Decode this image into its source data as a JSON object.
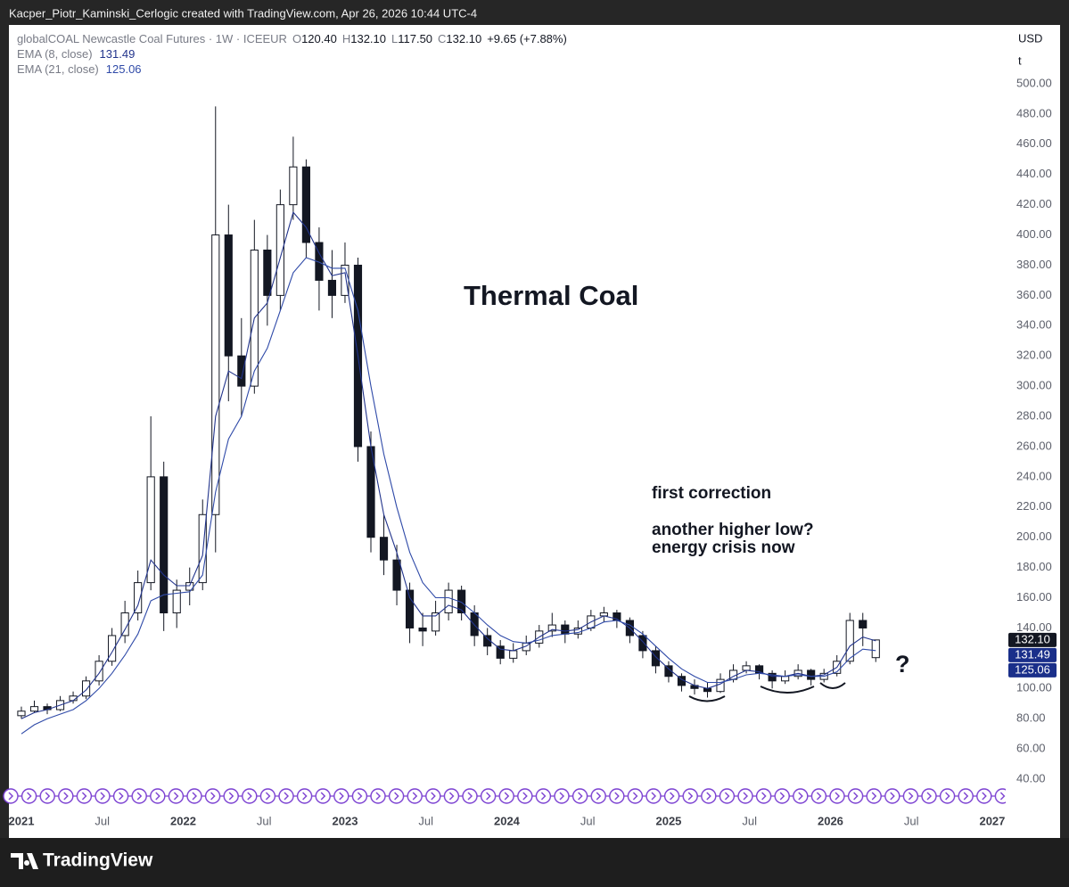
{
  "header": {
    "text": "Kacper_Piotr_Kaminski_Cerlogic created with TradingView.com, Apr 26, 2026 10:44 UTC-4"
  },
  "brand": "TradingView",
  "chart_data": {
    "type": "candlestick",
    "title": "Thermal Coal",
    "annotations": [
      "first correction",
      "another higher low?",
      "energy crisis now",
      "?"
    ],
    "legend": {
      "symbol": "globalCOAL Newcastle Coal Futures · 1W · ICEEUR",
      "fields": [
        {
          "key": "O",
          "value": "120.40"
        },
        {
          "key": "H",
          "value": "132.10"
        },
        {
          "key": "L",
          "value": "117.50"
        },
        {
          "key": "C",
          "value": "132.10"
        }
      ],
      "change": "+9.65 (+7.88%)"
    },
    "currency": "USD",
    "unit": "t",
    "x": [
      2021,
      2021.08,
      2021.16,
      2021.24,
      2021.32,
      2021.4,
      2021.48,
      2021.56,
      2021.64,
      2021.72,
      2021.8,
      2021.88,
      2021.96,
      2022.04,
      2022.12,
      2022.2,
      2022.28,
      2022.36,
      2022.44,
      2022.52,
      2022.6,
      2022.68,
      2022.76,
      2022.84,
      2022.92,
      2023,
      2023.08,
      2023.16,
      2023.24,
      2023.32,
      2023.4,
      2023.48,
      2023.56,
      2023.64,
      2023.72,
      2023.8,
      2023.88,
      2023.96,
      2024.04,
      2024.12,
      2024.2,
      2024.28,
      2024.36,
      2024.44,
      2024.52,
      2024.6,
      2024.68,
      2024.76,
      2024.84,
      2024.92,
      2025,
      2025.08,
      2025.16,
      2025.24,
      2025.32,
      2025.4,
      2025.48,
      2025.56,
      2025.64,
      2025.72,
      2025.8,
      2025.88,
      2025.96,
      2026.04,
      2026.12,
      2026.2,
      2026.28
    ],
    "series": [
      {
        "name": "globalCOAL Newcastle Coal Futures",
        "type": "candlestick",
        "up_color": "#ffffff",
        "down_color": "#131722",
        "border_color": "#131722",
        "values": [
          [
            82,
            88,
            80,
            85
          ],
          [
            85,
            92,
            84,
            88
          ],
          [
            88,
            90,
            83,
            86
          ],
          [
            86,
            95,
            85,
            92
          ],
          [
            92,
            98,
            90,
            95
          ],
          [
            95,
            108,
            93,
            105
          ],
          [
            105,
            122,
            102,
            118
          ],
          [
            118,
            140,
            115,
            135
          ],
          [
            135,
            158,
            130,
            150
          ],
          [
            150,
            178,
            145,
            170
          ],
          [
            170,
            280,
            165,
            240
          ],
          [
            240,
            250,
            138,
            150
          ],
          [
            150,
            172,
            140,
            165
          ],
          [
            165,
            180,
            155,
            170
          ],
          [
            170,
            225,
            165,
            215
          ],
          [
            215,
            485,
            190,
            400
          ],
          [
            400,
            420,
            290,
            320
          ],
          [
            320,
            345,
            280,
            300
          ],
          [
            300,
            410,
            295,
            390
          ],
          [
            390,
            400,
            340,
            360
          ],
          [
            360,
            430,
            350,
            420
          ],
          [
            420,
            465,
            410,
            445
          ],
          [
            445,
            450,
            385,
            395
          ],
          [
            395,
            405,
            350,
            370
          ],
          [
            370,
            390,
            345,
            360
          ],
          [
            360,
            395,
            355,
            380
          ],
          [
            380,
            385,
            250,
            260
          ],
          [
            260,
            270,
            190,
            200
          ],
          [
            200,
            215,
            175,
            185
          ],
          [
            185,
            195,
            155,
            165
          ],
          [
            165,
            170,
            130,
            140
          ],
          [
            140,
            150,
            128,
            138
          ],
          [
            138,
            158,
            135,
            150
          ],
          [
            150,
            170,
            145,
            165
          ],
          [
            165,
            168,
            145,
            150
          ],
          [
            150,
            155,
            128,
            135
          ],
          [
            135,
            140,
            122,
            128
          ],
          [
            128,
            132,
            116,
            120
          ],
          [
            120,
            130,
            117,
            125
          ],
          [
            125,
            135,
            122,
            130
          ],
          [
            130,
            142,
            127,
            138
          ],
          [
            138,
            150,
            134,
            142
          ],
          [
            142,
            145,
            130,
            136
          ],
          [
            136,
            145,
            133,
            140
          ],
          [
            140,
            152,
            138,
            148
          ],
          [
            148,
            154,
            144,
            150
          ],
          [
            150,
            152,
            140,
            145
          ],
          [
            145,
            147,
            130,
            135
          ],
          [
            135,
            138,
            120,
            125
          ],
          [
            125,
            128,
            110,
            115
          ],
          [
            115,
            118,
            104,
            108
          ],
          [
            108,
            110,
            98,
            102
          ],
          [
            102,
            106,
            96,
            100
          ],
          [
            100,
            104,
            94,
            98
          ],
          [
            98,
            110,
            97,
            106
          ],
          [
            106,
            116,
            104,
            112
          ],
          [
            112,
            118,
            110,
            115
          ],
          [
            115,
            116,
            106,
            110
          ],
          [
            110,
            112,
            100,
            105
          ],
          [
            105,
            112,
            103,
            108
          ],
          [
            108,
            116,
            106,
            112
          ],
          [
            112,
            113,
            102,
            106
          ],
          [
            106,
            113,
            104,
            110
          ],
          [
            110,
            122,
            108,
            118
          ],
          [
            118,
            150,
            116,
            145
          ],
          [
            145,
            150,
            128,
            140
          ],
          [
            120.4,
            132.1,
            117.5,
            132.1
          ]
        ]
      },
      {
        "name": "EMA (8, close)",
        "type": "line",
        "color": "#22348c",
        "legend_value": "131.49",
        "values": [
          80,
          84,
          86,
          89,
          92,
          99,
          110,
          124,
          139,
          155,
          185,
          175,
          168,
          168,
          188,
          280,
          310,
          305,
          345,
          355,
          385,
          415,
          405,
          388,
          373,
          375,
          320,
          260,
          215,
          190,
          160,
          148,
          148,
          155,
          152,
          142,
          133,
          126,
          125,
          128,
          134,
          139,
          138,
          139,
          144,
          148,
          146,
          140,
          131,
          121,
          113,
          106,
          102,
          100,
          103,
          108,
          112,
          111,
          108,
          108,
          110,
          108,
          109,
          114,
          128,
          134,
          131.49
        ]
      },
      {
        "name": "EMA (21, close)",
        "type": "line",
        "color": "#2f4aa8",
        "legend_value": "125.06",
        "values": [
          70,
          76,
          80,
          83,
          86,
          92,
          100,
          110,
          122,
          136,
          158,
          162,
          163,
          164,
          175,
          230,
          265,
          280,
          310,
          325,
          350,
          375,
          385,
          382,
          378,
          378,
          350,
          300,
          255,
          220,
          190,
          170,
          160,
          160,
          157,
          150,
          142,
          135,
          131,
          130,
          132,
          135,
          136,
          137,
          140,
          144,
          145,
          142,
          136,
          128,
          120,
          113,
          108,
          104,
          104,
          106,
          109,
          110,
          109,
          108,
          109,
          108,
          108,
          111,
          120,
          126,
          125.06
        ]
      }
    ],
    "price_labels": [
      {
        "value": 132.1,
        "label": "132.10",
        "color": "#131722"
      },
      {
        "value": 131.49,
        "label": "131.49",
        "color": "#1a2f8a"
      },
      {
        "value": 125.06,
        "label": "125.06",
        "color": "#1a2f8a"
      }
    ],
    "xlim": [
      2020.923,
      2027.094
    ],
    "xticks": [
      2021,
      {
        "value": 2021.5,
        "label": "Jul"
      },
      2022,
      {
        "value": 2022.5,
        "label": "Jul"
      },
      2023,
      {
        "value": 2023.5,
        "label": "Jul"
      },
      2024,
      {
        "value": 2024.5,
        "label": "Jul"
      },
      2025,
      {
        "value": 2025.5,
        "label": "Jul"
      },
      2026,
      {
        "value": 2026.5,
        "label": "Jul"
      },
      2027
    ],
    "ylim": [
      18.8,
      538.9
    ],
    "yticks": [
      {
        "value": 40,
        "label": "40.00"
      },
      {
        "value": 60,
        "label": "60.00"
      },
      {
        "value": 80,
        "label": "80.00"
      },
      {
        "value": 100,
        "label": "100.00"
      },
      {
        "value": 120,
        "label": "120.00"
      },
      {
        "value": 140,
        "label": "140.00"
      },
      {
        "value": 160,
        "label": "160.00"
      },
      {
        "value": 180,
        "label": "180.00"
      },
      {
        "value": 200,
        "label": "200.00"
      },
      {
        "value": 220,
        "label": "220.00"
      },
      {
        "value": 240,
        "label": "240.00"
      },
      {
        "value": 260,
        "label": "260.00"
      },
      {
        "value": 280,
        "label": "280.00"
      },
      {
        "value": 300,
        "label": "300.00"
      },
      {
        "value": 320,
        "label": "320.00"
      },
      {
        "value": 340,
        "label": "340.00"
      },
      {
        "value": 360,
        "label": "360.00"
      },
      {
        "value": 380,
        "label": "380.00"
      },
      {
        "value": 400,
        "label": "400.00"
      },
      {
        "value": 420,
        "label": "420.00"
      },
      {
        "value": 440,
        "label": "440.00"
      },
      {
        "value": 460,
        "label": "460.00"
      },
      {
        "value": 480,
        "label": "480.00"
      },
      {
        "value": 500,
        "label": "500.00"
      }
    ],
    "grid": false
  }
}
